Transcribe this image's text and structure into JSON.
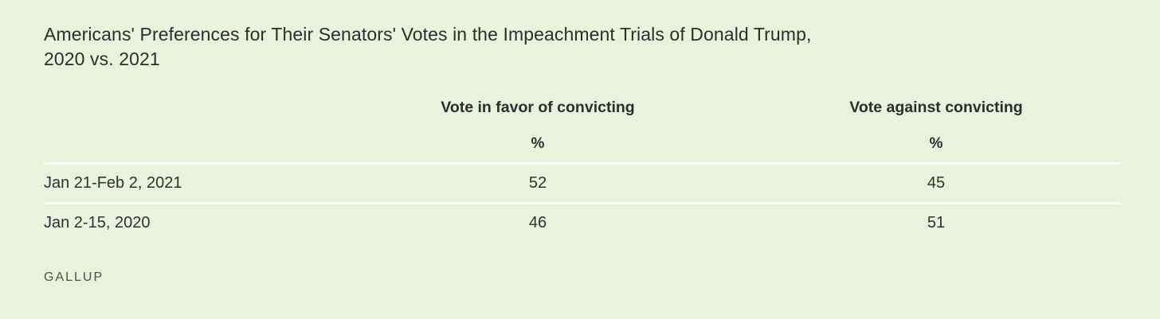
{
  "page": {
    "background_color": "#e9f2dc",
    "divider_color": "#fbfdf6",
    "text_color": "#2d2d2f"
  },
  "title": {
    "line1": "Americans' Preferences for Their Senators' Votes in the Impeachment Trials of Donald Trump,",
    "line2": "2020 vs. 2021",
    "full": "Americans' Preferences for Their Senators' Votes in the Impeachment Trials of Donald Trump, 2020 vs. 2021"
  },
  "table": {
    "columns": [
      {
        "label": "",
        "unit": ""
      },
      {
        "label": "Vote in favor of convicting",
        "unit": "%"
      },
      {
        "label": "Vote against convicting",
        "unit": "%"
      }
    ],
    "rows": [
      {
        "label": "Jan 21-Feb 2, 2021",
        "favor": "52",
        "against": "45"
      },
      {
        "label": "Jan 2-15, 2020",
        "favor": "46",
        "against": "51"
      }
    ]
  },
  "footer": {
    "brand": "GALLUP"
  },
  "chart_data": {
    "type": "table",
    "title": "Americans' Preferences for Their Senators' Votes in the Impeachment Trials of Donald Trump, 2020 vs. 2021",
    "categories": [
      "Jan 21-Feb 2, 2021",
      "Jan 2-15, 2020"
    ],
    "series": [
      {
        "name": "Vote in favor of convicting",
        "values": [
          52,
          46
        ]
      },
      {
        "name": "Vote against convicting",
        "values": [
          45,
          51
        ]
      }
    ],
    "unit": "%",
    "layout": {
      "grid": "horizontal white dividers between rows",
      "legend_position": "column headers"
    }
  }
}
